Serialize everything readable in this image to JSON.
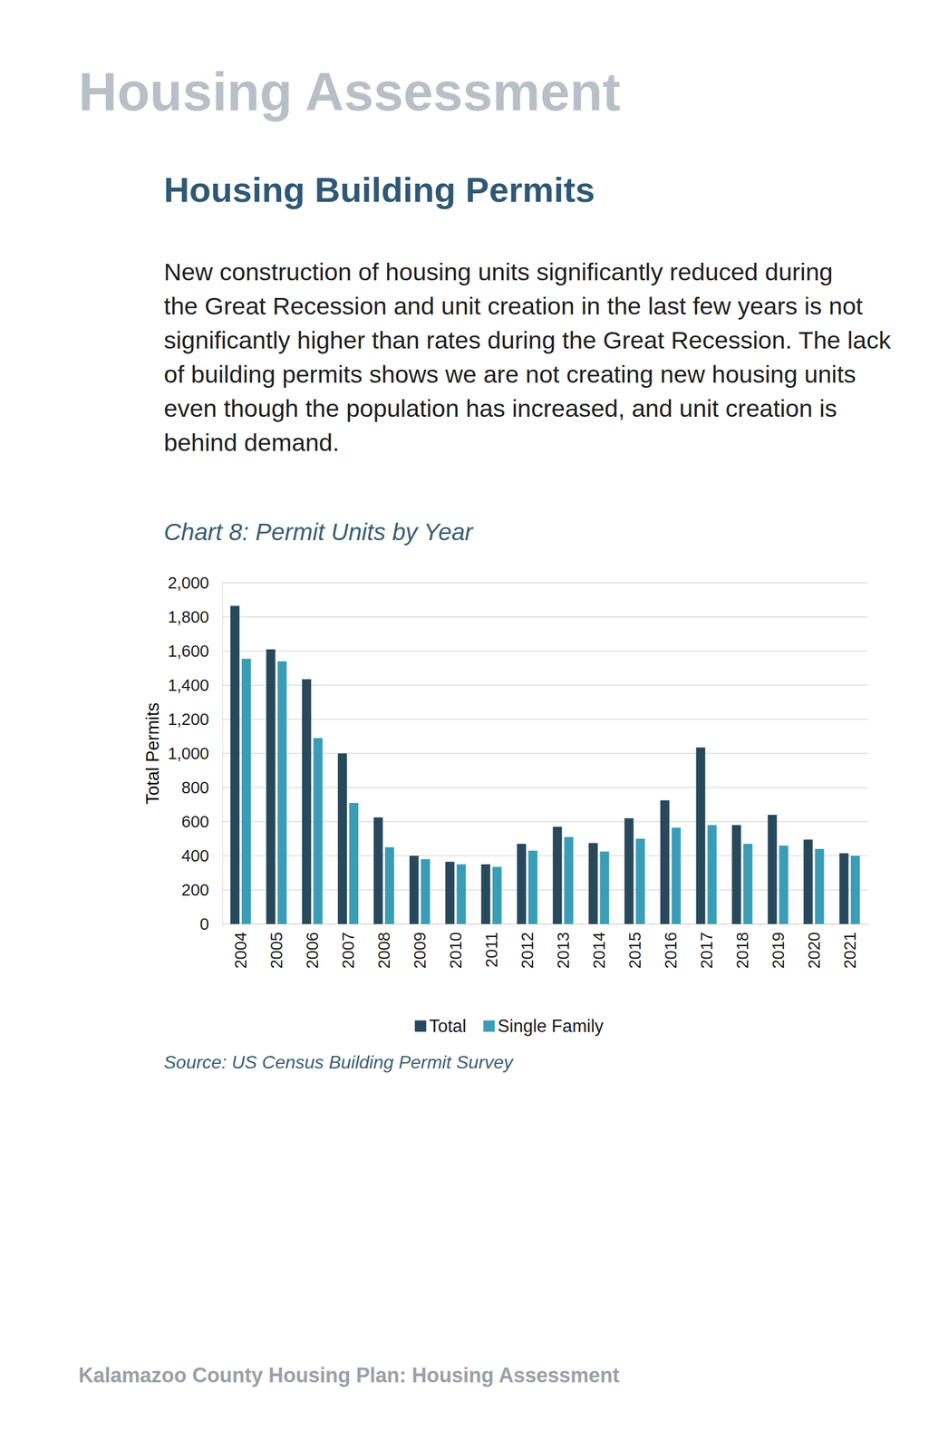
{
  "header": "Housing Assessment",
  "heading": "Housing Building Permits",
  "body": [
    "New construction of housing units significantly reduced during",
    "the Great Recession and unit creation in the last few years is not",
    "significantly higher than rates during the Great Recession. The lack",
    "of building permits shows we are not creating new housing units",
    "even though the population has increased, and unit creation is",
    "behind demand."
  ],
  "chart_data": {
    "type": "bar",
    "title": "Chart 8: Permit Units by Year",
    "y_label": "Total Permits",
    "categories": [
      "2004",
      "2005",
      "2006",
      "2007",
      "2008",
      "2009",
      "2010",
      "2011",
      "2012",
      "2013",
      "2014",
      "2015",
      "2016",
      "2017",
      "2018",
      "2019",
      "2020",
      "2021"
    ],
    "series": [
      {
        "name": "Total",
        "color": "#27495b",
        "values": [
          1865,
          1610,
          1435,
          1000,
          625,
          400,
          365,
          350,
          470,
          570,
          475,
          620,
          725,
          1035,
          580,
          640,
          495,
          415
        ]
      },
      {
        "name": "Single Family",
        "color": "#3a9db6",
        "values": [
          1555,
          1540,
          1090,
          710,
          450,
          380,
          350,
          335,
          430,
          510,
          425,
          500,
          565,
          580,
          470,
          460,
          440,
          400
        ]
      }
    ],
    "ylim": [
      0,
      2000
    ],
    "yticks": [
      0,
      200,
      400,
      600,
      800,
      {
        "value": 1000,
        "label": "1,000"
      },
      {
        "value": 1200,
        "label": "1,200"
      },
      {
        "value": 1400,
        "label": "1,400"
      },
      {
        "value": 1600,
        "label": "1,600"
      },
      {
        "value": 1800,
        "label": "1,800"
      },
      {
        "value": 2000,
        "label": "2,000"
      }
    ],
    "grid": true,
    "legend": "bottom"
  },
  "source": "Source: US Census Building Permit Survey",
  "footer": "Kalamazoo County Housing Plan: Housing Assessment"
}
